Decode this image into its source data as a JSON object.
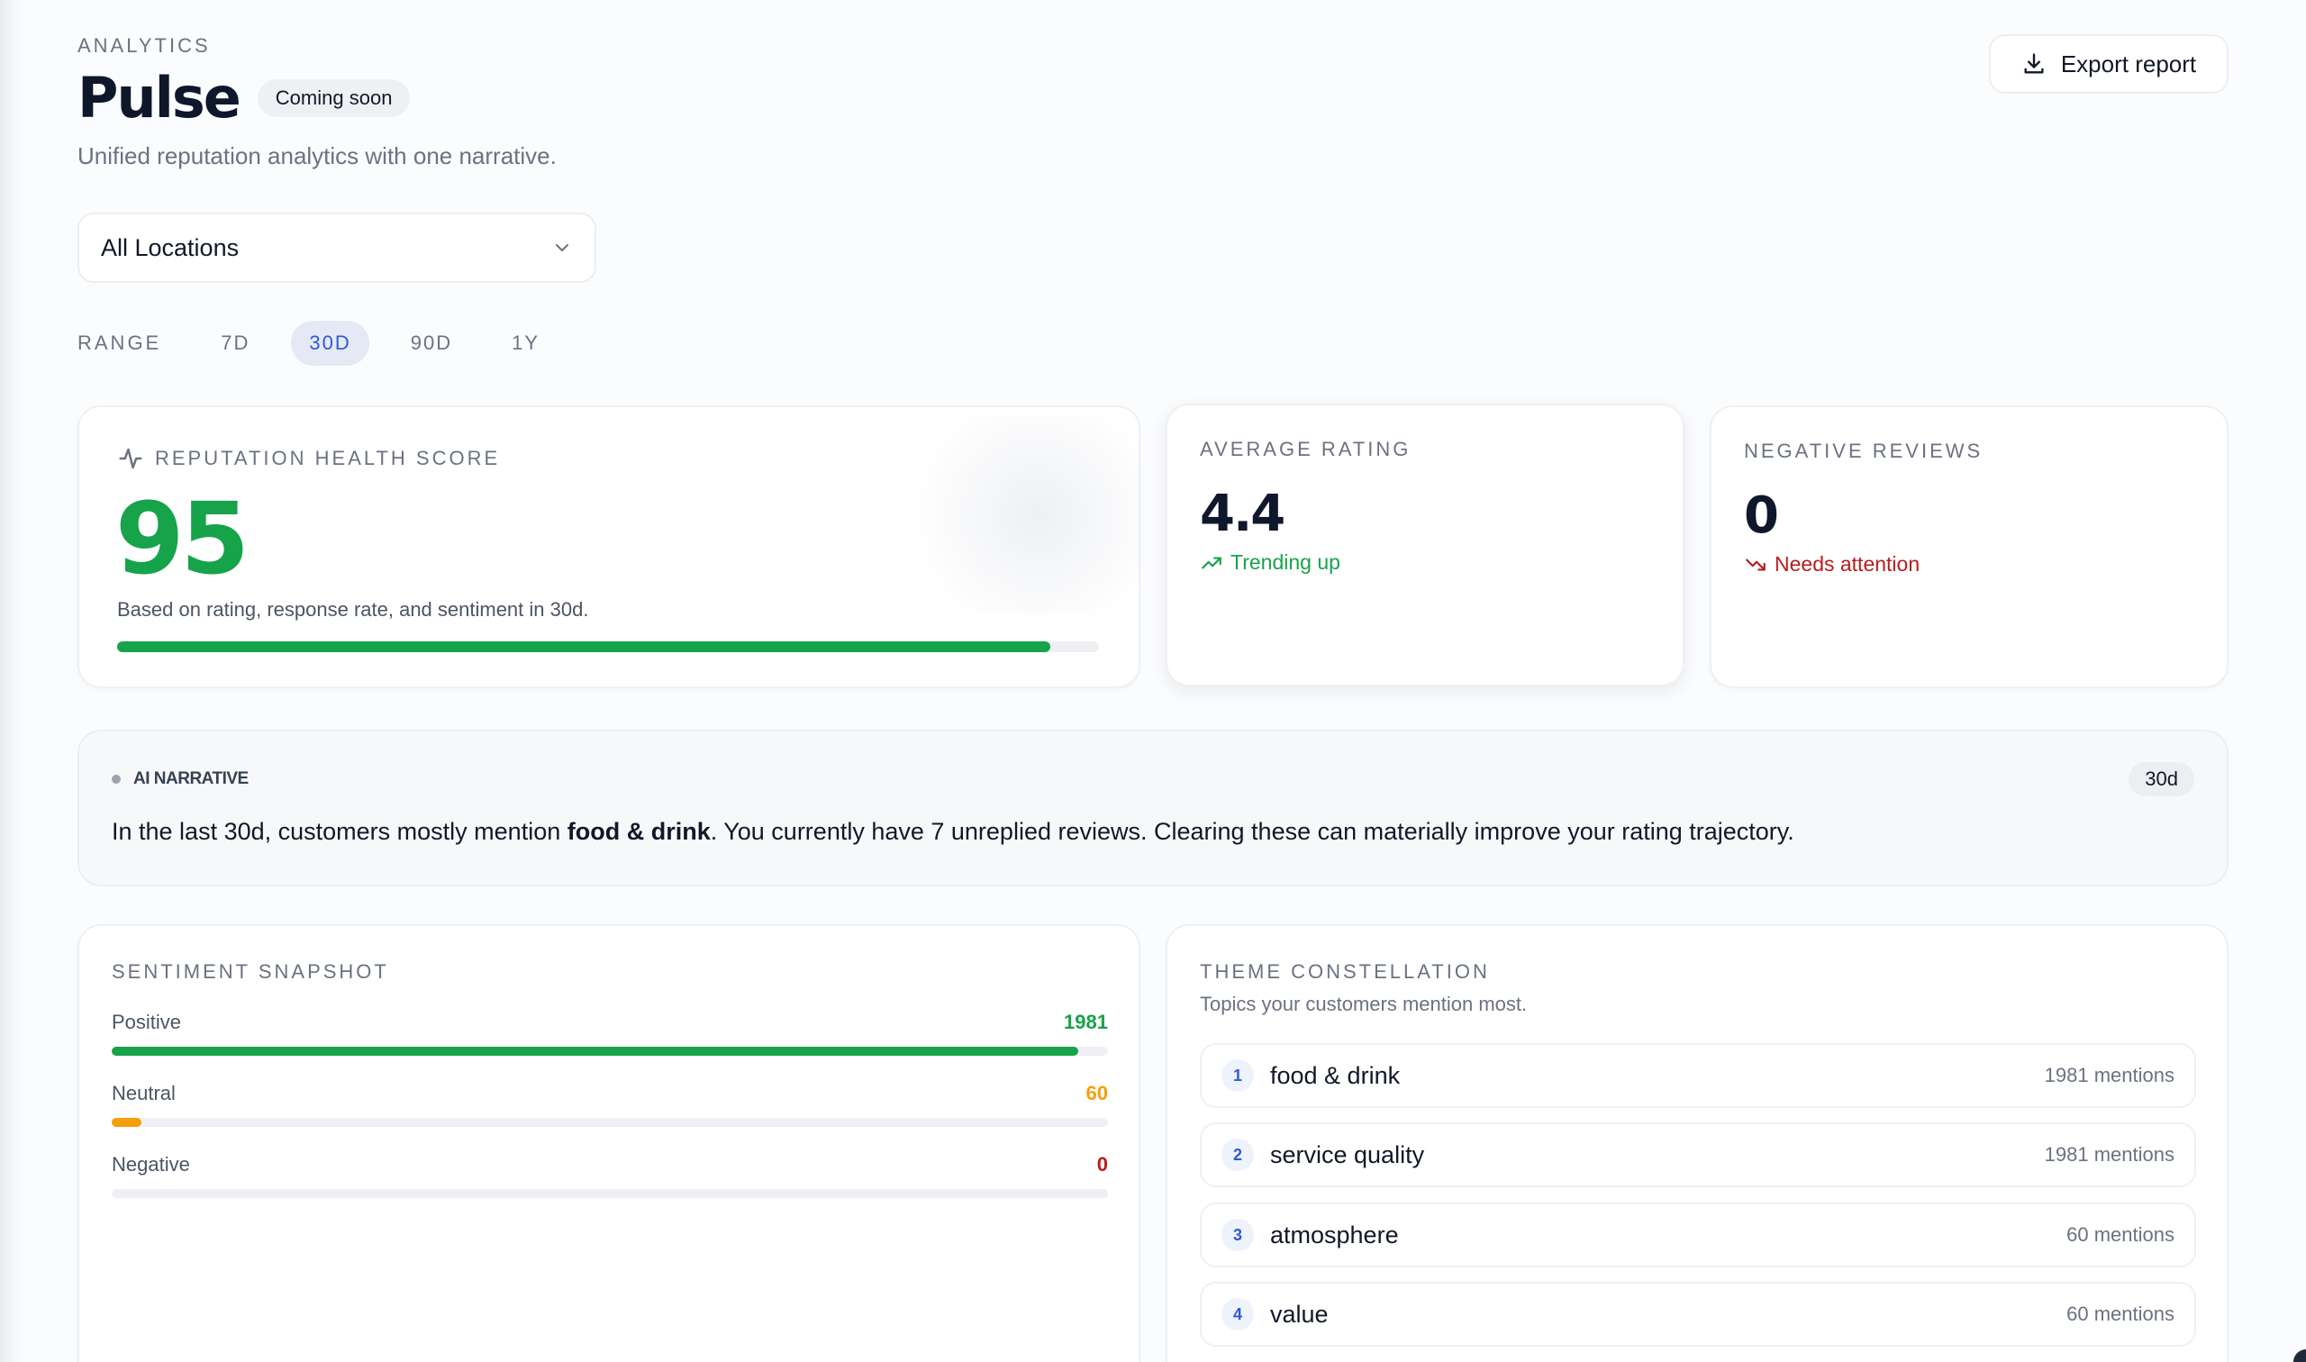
{
  "header": {
    "eyebrow": "ANALYTICS",
    "title": "Pulse",
    "badge": "Coming soon",
    "subtitle": "Unified reputation analytics with one narrative.",
    "export_label": "Export report"
  },
  "location": {
    "selected": "All Locations"
  },
  "range": {
    "label": "RANGE",
    "options": [
      "7D",
      "30D",
      "90D",
      "1Y"
    ],
    "active": "30D"
  },
  "health": {
    "label": "REPUTATION HEALTH SCORE",
    "score": "95",
    "note": "Based on rating, response rate, and sentiment in 30d.",
    "progress_pct": 95,
    "color": "#16a34a"
  },
  "average_rating": {
    "label": "AVERAGE RATING",
    "value": "4.4",
    "trend": "Trending up"
  },
  "negative_reviews": {
    "label": "NEGATIVE REVIEWS",
    "value": "0",
    "trend": "Needs attention"
  },
  "narrative": {
    "tag": "AI NARRATIVE",
    "period": "30d",
    "text_before": "In the last 30d, customers mostly mention ",
    "text_bold": "food & drink",
    "text_after": ". You currently have 7 unreplied reviews. Clearing these can materially improve your rating trajectory."
  },
  "sentiment": {
    "label": "SENTIMENT SNAPSHOT",
    "rows": [
      {
        "name": "Positive",
        "value": "1981",
        "pct": 97,
        "color": "#16a34a"
      },
      {
        "name": "Neutral",
        "value": "60",
        "pct": 3,
        "color": "#f59e0b"
      },
      {
        "name": "Negative",
        "value": "0",
        "pct": 0,
        "color": "#b91c1c"
      }
    ]
  },
  "themes": {
    "label": "THEME CONSTELLATION",
    "subtitle": "Topics your customers mention most.",
    "items": [
      {
        "num": "1",
        "name": "food & drink",
        "count": "1981 mentions"
      },
      {
        "num": "2",
        "name": "service quality",
        "count": "1981 mentions"
      },
      {
        "num": "3",
        "name": "atmosphere",
        "count": "60 mentions"
      },
      {
        "num": "4",
        "name": "value",
        "count": "60 mentions"
      }
    ]
  },
  "icons": {
    "export": "download-icon",
    "select": "chevron-down-icon",
    "health": "pulse-icon",
    "trend_up": "trending-up-icon",
    "trend_down": "trending-down-icon"
  }
}
